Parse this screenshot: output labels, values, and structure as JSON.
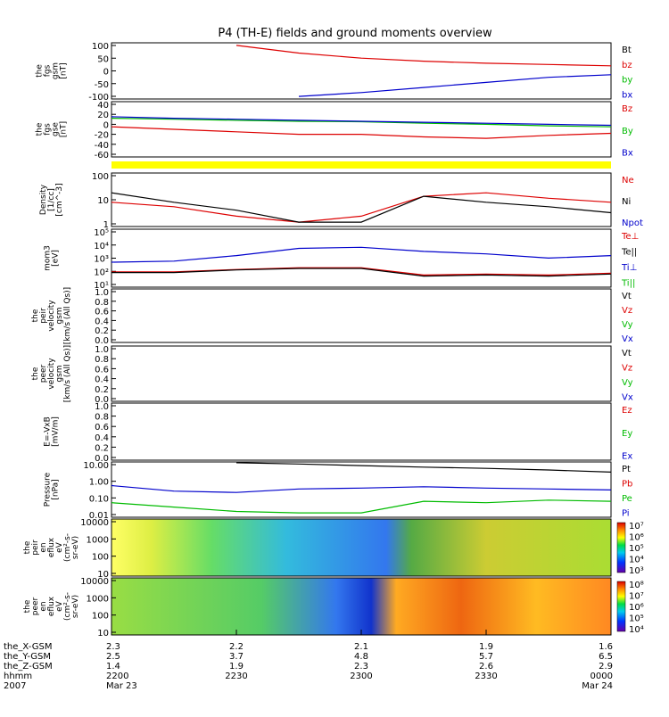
{
  "title": "P4 (TH-E) fields and ground moments overview",
  "colors": {
    "black": "#000000",
    "red": "#dd0000",
    "green": "#00bb00",
    "blue": "#0000cc",
    "yellow": "#ffff00"
  },
  "panels": [
    {
      "id": "fgs-gsm",
      "ylabel": [
        "the",
        "fgs",
        "gsm",
        "[nT]"
      ],
      "ticks": [
        "100",
        "50",
        "0",
        "-50",
        "-100"
      ],
      "legend": [
        {
          "t": "Bt",
          "c": "black"
        },
        {
          "t": "bz",
          "c": "red"
        },
        {
          "t": "by",
          "c": "green"
        },
        {
          "t": "bx",
          "c": "blue"
        }
      ]
    },
    {
      "id": "fgs-gse",
      "ylabel": [
        "the",
        "fgs",
        "gse",
        "[nT]"
      ],
      "ticks": [
        "40",
        "20",
        "0",
        "-20",
        "-40",
        "-60"
      ],
      "legend": [
        {
          "t": "Bz",
          "c": "red"
        },
        {
          "t": "By",
          "c": "green"
        },
        {
          "t": "Bx",
          "c": "blue"
        }
      ]
    },
    {
      "id": "density",
      "ylabel": [
        "Density",
        "[1/cc]",
        "[cm^-3]"
      ],
      "ticks": [
        "100",
        "10",
        "1"
      ],
      "legend": [
        {
          "t": "Ne",
          "c": "red"
        },
        {
          "t": "Ni",
          "c": "black"
        },
        {
          "t": "Npot",
          "c": "blue"
        }
      ]
    },
    {
      "id": "temperature",
      "ylabel": [
        "mom3",
        "[eV]"
      ],
      "ticks": [
        "10⁵",
        "10⁴",
        "10³",
        "10²",
        "10¹"
      ],
      "legend": [
        {
          "t": "Te⊥",
          "c": "red"
        },
        {
          "t": "Te||",
          "c": "black"
        },
        {
          "t": "Ti⊥",
          "c": "blue"
        },
        {
          "t": "Ti||",
          "c": "green"
        }
      ]
    },
    {
      "id": "peir-velocity",
      "ylabel": [
        "the",
        "peir",
        "velocity",
        "gsm",
        "[km/s (All Qs)]"
      ],
      "ticks": [
        "1.0",
        "0.8",
        "0.6",
        "0.4",
        "0.2",
        "0.0"
      ],
      "legend": [
        {
          "t": "Vt",
          "c": "black"
        },
        {
          "t": "Vz",
          "c": "red"
        },
        {
          "t": "Vy",
          "c": "green"
        },
        {
          "t": "Vx",
          "c": "blue"
        }
      ]
    },
    {
      "id": "peer-velocity",
      "ylabel": [
        "the",
        "peer",
        "velocity",
        "gsm",
        "[km/s (All Qs)]"
      ],
      "ticks": [
        "1.0",
        "0.8",
        "0.6",
        "0.4",
        "0.2",
        "0.0"
      ],
      "legend": [
        {
          "t": "Vt",
          "c": "black"
        },
        {
          "t": "Vz",
          "c": "red"
        },
        {
          "t": "Vy",
          "c": "green"
        },
        {
          "t": "Vx",
          "c": "blue"
        }
      ]
    },
    {
      "id": "e-field",
      "ylabel": [
        "E=-VxB",
        "[mV/m]"
      ],
      "ticks": [
        "1.0",
        "0.8",
        "0.6",
        "0.4",
        "0.2",
        "0.0"
      ],
      "legend": [
        {
          "t": "Ez",
          "c": "red"
        },
        {
          "t": "Ey",
          "c": "green"
        },
        {
          "t": "Ex",
          "c": "blue"
        }
      ]
    },
    {
      "id": "pressure",
      "ylabel": [
        "Pressure",
        "[nPa]"
      ],
      "ticks": [
        "10.00",
        "1.00",
        "0.10",
        "0.01"
      ],
      "legend": [
        {
          "t": "Pt",
          "c": "black"
        },
        {
          "t": "Pb",
          "c": "red"
        },
        {
          "t": "Pe",
          "c": "green"
        },
        {
          "t": "Pi",
          "c": "blue"
        }
      ]
    },
    {
      "id": "peir-spec",
      "ylabel": [
        "the",
        "peir",
        "en",
        "eflux",
        "eV",
        "(cm²-s-",
        "sr-eV)"
      ],
      "ticks": [
        "10000",
        "1000",
        "100",
        "10"
      ],
      "colorbar": [
        "10⁷",
        "10⁶",
        "10⁵",
        "10⁴",
        "10³"
      ]
    },
    {
      "id": "peer-spec",
      "ylabel": [
        "the",
        "peer",
        "en",
        "eflux",
        "eV",
        "(cm²-s-",
        "sr-eV)"
      ],
      "ticks": [
        "10000",
        "1000",
        "100",
        "10"
      ],
      "colorbar": [
        "10⁸",
        "10⁷",
        "10⁶",
        "10⁵",
        "10⁴"
      ]
    }
  ],
  "xaxis": {
    "labels": [
      "the_X-GSM",
      "the_Y-GSM",
      "the_Z-GSM",
      "hhmm",
      "2007"
    ],
    "columns": [
      [
        "2.3",
        "2.5",
        "1.4",
        "2200",
        "Mar 23"
      ],
      [
        "2.2",
        "3.7",
        "1.9",
        "2230",
        ""
      ],
      [
        "2.1",
        "4.8",
        "2.3",
        "2300",
        ""
      ],
      [
        "1.9",
        "5.7",
        "2.6",
        "2330",
        ""
      ],
      [
        "1.6",
        "6.5",
        "2.9",
        "0000",
        "Mar 24"
      ]
    ]
  },
  "chart_data": {
    "type": "line",
    "title": "P4 (TH-E) fields and ground moments overview",
    "x_hhmm": [
      "2200",
      "2230",
      "2300",
      "2330",
      "0000"
    ],
    "fgs_gsm_nT": {
      "x": [
        "2200",
        "2215",
        "2230",
        "2245",
        "2300",
        "2315",
        "2330",
        "2345",
        "0000"
      ],
      "series": [
        {
          "name": "bz",
          "values": [
            null,
            null,
            100,
            70,
            50,
            38,
            30,
            25,
            20
          ]
        },
        {
          "name": "bx",
          "values": [
            null,
            null,
            null,
            -100,
            -85,
            -65,
            -45,
            -25,
            -15
          ]
        }
      ],
      "ylim": [
        -100,
        100
      ]
    },
    "fgs_gse_nT": {
      "x": [
        "2200",
        "2215",
        "2230",
        "2245",
        "2300",
        "2315",
        "2330",
        "2345",
        "0000"
      ],
      "series": [
        {
          "name": "Bz",
          "values": [
            -5,
            -10,
            -15,
            -20,
            -20,
            -25,
            -28,
            -22,
            -18
          ]
        },
        {
          "name": "By",
          "values": [
            12,
            10,
            8,
            6,
            5,
            2,
            0,
            -3,
            -5
          ]
        },
        {
          "name": "Bx",
          "values": [
            15,
            12,
            10,
            8,
            6,
            4,
            2,
            0,
            -2
          ]
        }
      ],
      "ylim": [
        -60,
        40
      ]
    },
    "density_cm3": {
      "x": [
        "2200",
        "2215",
        "2230",
        "2245",
        "2300",
        "2315",
        "2330",
        "2345",
        "0000"
      ],
      "series": [
        {
          "name": "Ne",
          "values": [
            5,
            3,
            1,
            0.5,
            1,
            10,
            15,
            8,
            5
          ]
        },
        {
          "name": "Ni",
          "values": [
            15,
            5,
            2,
            0.5,
            0.5,
            10,
            5,
            3,
            1.5
          ]
        }
      ]
    },
    "temperature_eV": {
      "x": [
        "2200",
        "2215",
        "2230",
        "2245",
        "2300",
        "2315",
        "2330",
        "2345",
        "0000"
      ],
      "series": [
        {
          "name": "Ti⊥",
          "values": [
            500,
            600,
            1500,
            5000,
            6000,
            3000,
            2000,
            1000,
            1500
          ]
        },
        {
          "name": "Te⊥",
          "values": [
            100,
            100,
            150,
            200,
            200,
            60,
            70,
            60,
            80
          ]
        },
        {
          "name": "Te||",
          "values": [
            90,
            90,
            140,
            180,
            180,
            50,
            60,
            50,
            70
          ]
        }
      ]
    },
    "pressure_nPa": {
      "x": [
        "2200",
        "2215",
        "2230",
        "2245",
        "2300",
        "2315",
        "2330",
        "2345",
        "0000"
      ],
      "series": [
        {
          "name": "Pt",
          "values": [
            null,
            null,
            22,
            18,
            14,
            11,
            9,
            7,
            5
          ]
        },
        {
          "name": "Pi",
          "values": [
            0.6,
            0.25,
            0.2,
            0.35,
            0.4,
            0.5,
            0.4,
            0.35,
            0.3
          ]
        },
        {
          "name": "Pe",
          "values": [
            0.04,
            0.02,
            0.01,
            0.008,
            0.008,
            0.05,
            0.04,
            0.06,
            0.05
          ]
        }
      ]
    }
  }
}
